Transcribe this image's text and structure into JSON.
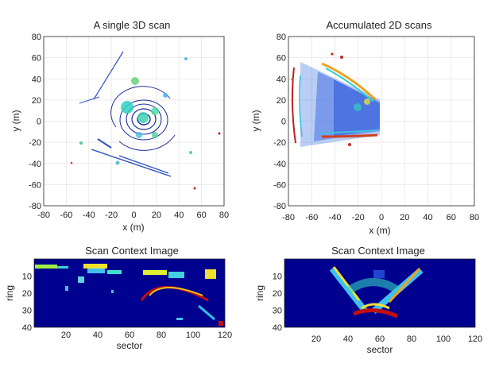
{
  "chart_data": [
    {
      "type": "scatter",
      "title": "A single 3D scan",
      "xlabel": "x (m)",
      "ylabel": "y (m)",
      "xlim": [
        -80,
        80
      ],
      "ylim": [
        -80,
        80
      ],
      "xticks": [
        -80,
        -60,
        -40,
        -20,
        0,
        20,
        40,
        60,
        80
      ],
      "yticks": [
        80,
        60,
        40,
        20,
        0,
        -20,
        -40,
        -60,
        -80
      ],
      "grid": true
    },
    {
      "type": "scatter",
      "title": "Accumulated 2D scans",
      "xlabel": "x (m)",
      "ylabel": "y (m)",
      "xlim": [
        -80,
        80
      ],
      "ylim": [
        -80,
        80
      ],
      "xticks": [
        -80,
        -60,
        -40,
        -20,
        0,
        20,
        40,
        60,
        80
      ],
      "yticks": [
        80,
        60,
        40,
        20,
        0,
        -20,
        -40,
        -60,
        -80
      ],
      "grid": true
    },
    {
      "type": "heatmap",
      "title": "Scan Context Image",
      "xlabel": "sector",
      "ylabel": "ring",
      "xlim": [
        0,
        120
      ],
      "ylim": [
        0,
        40
      ],
      "xticks": [
        20,
        40,
        60,
        80,
        100,
        120
      ],
      "yticks": [
        10,
        20,
        30,
        40
      ]
    },
    {
      "type": "heatmap",
      "title": "Scan Context Image",
      "xlabel": "sector",
      "ylabel": "ring",
      "xlim": [
        0,
        120
      ],
      "ylim": [
        0,
        40
      ],
      "xticks": [
        20,
        40,
        60,
        80,
        100,
        120
      ],
      "yticks": [
        10,
        20,
        30,
        40
      ]
    }
  ],
  "colors": {
    "background": "#00008f",
    "scatter_main": "#1f2f9f",
    "jet_low": "#2040ff",
    "jet_mid": "#30e0d0",
    "jet_high": "#ffee30",
    "jet_top": "#c01010"
  }
}
